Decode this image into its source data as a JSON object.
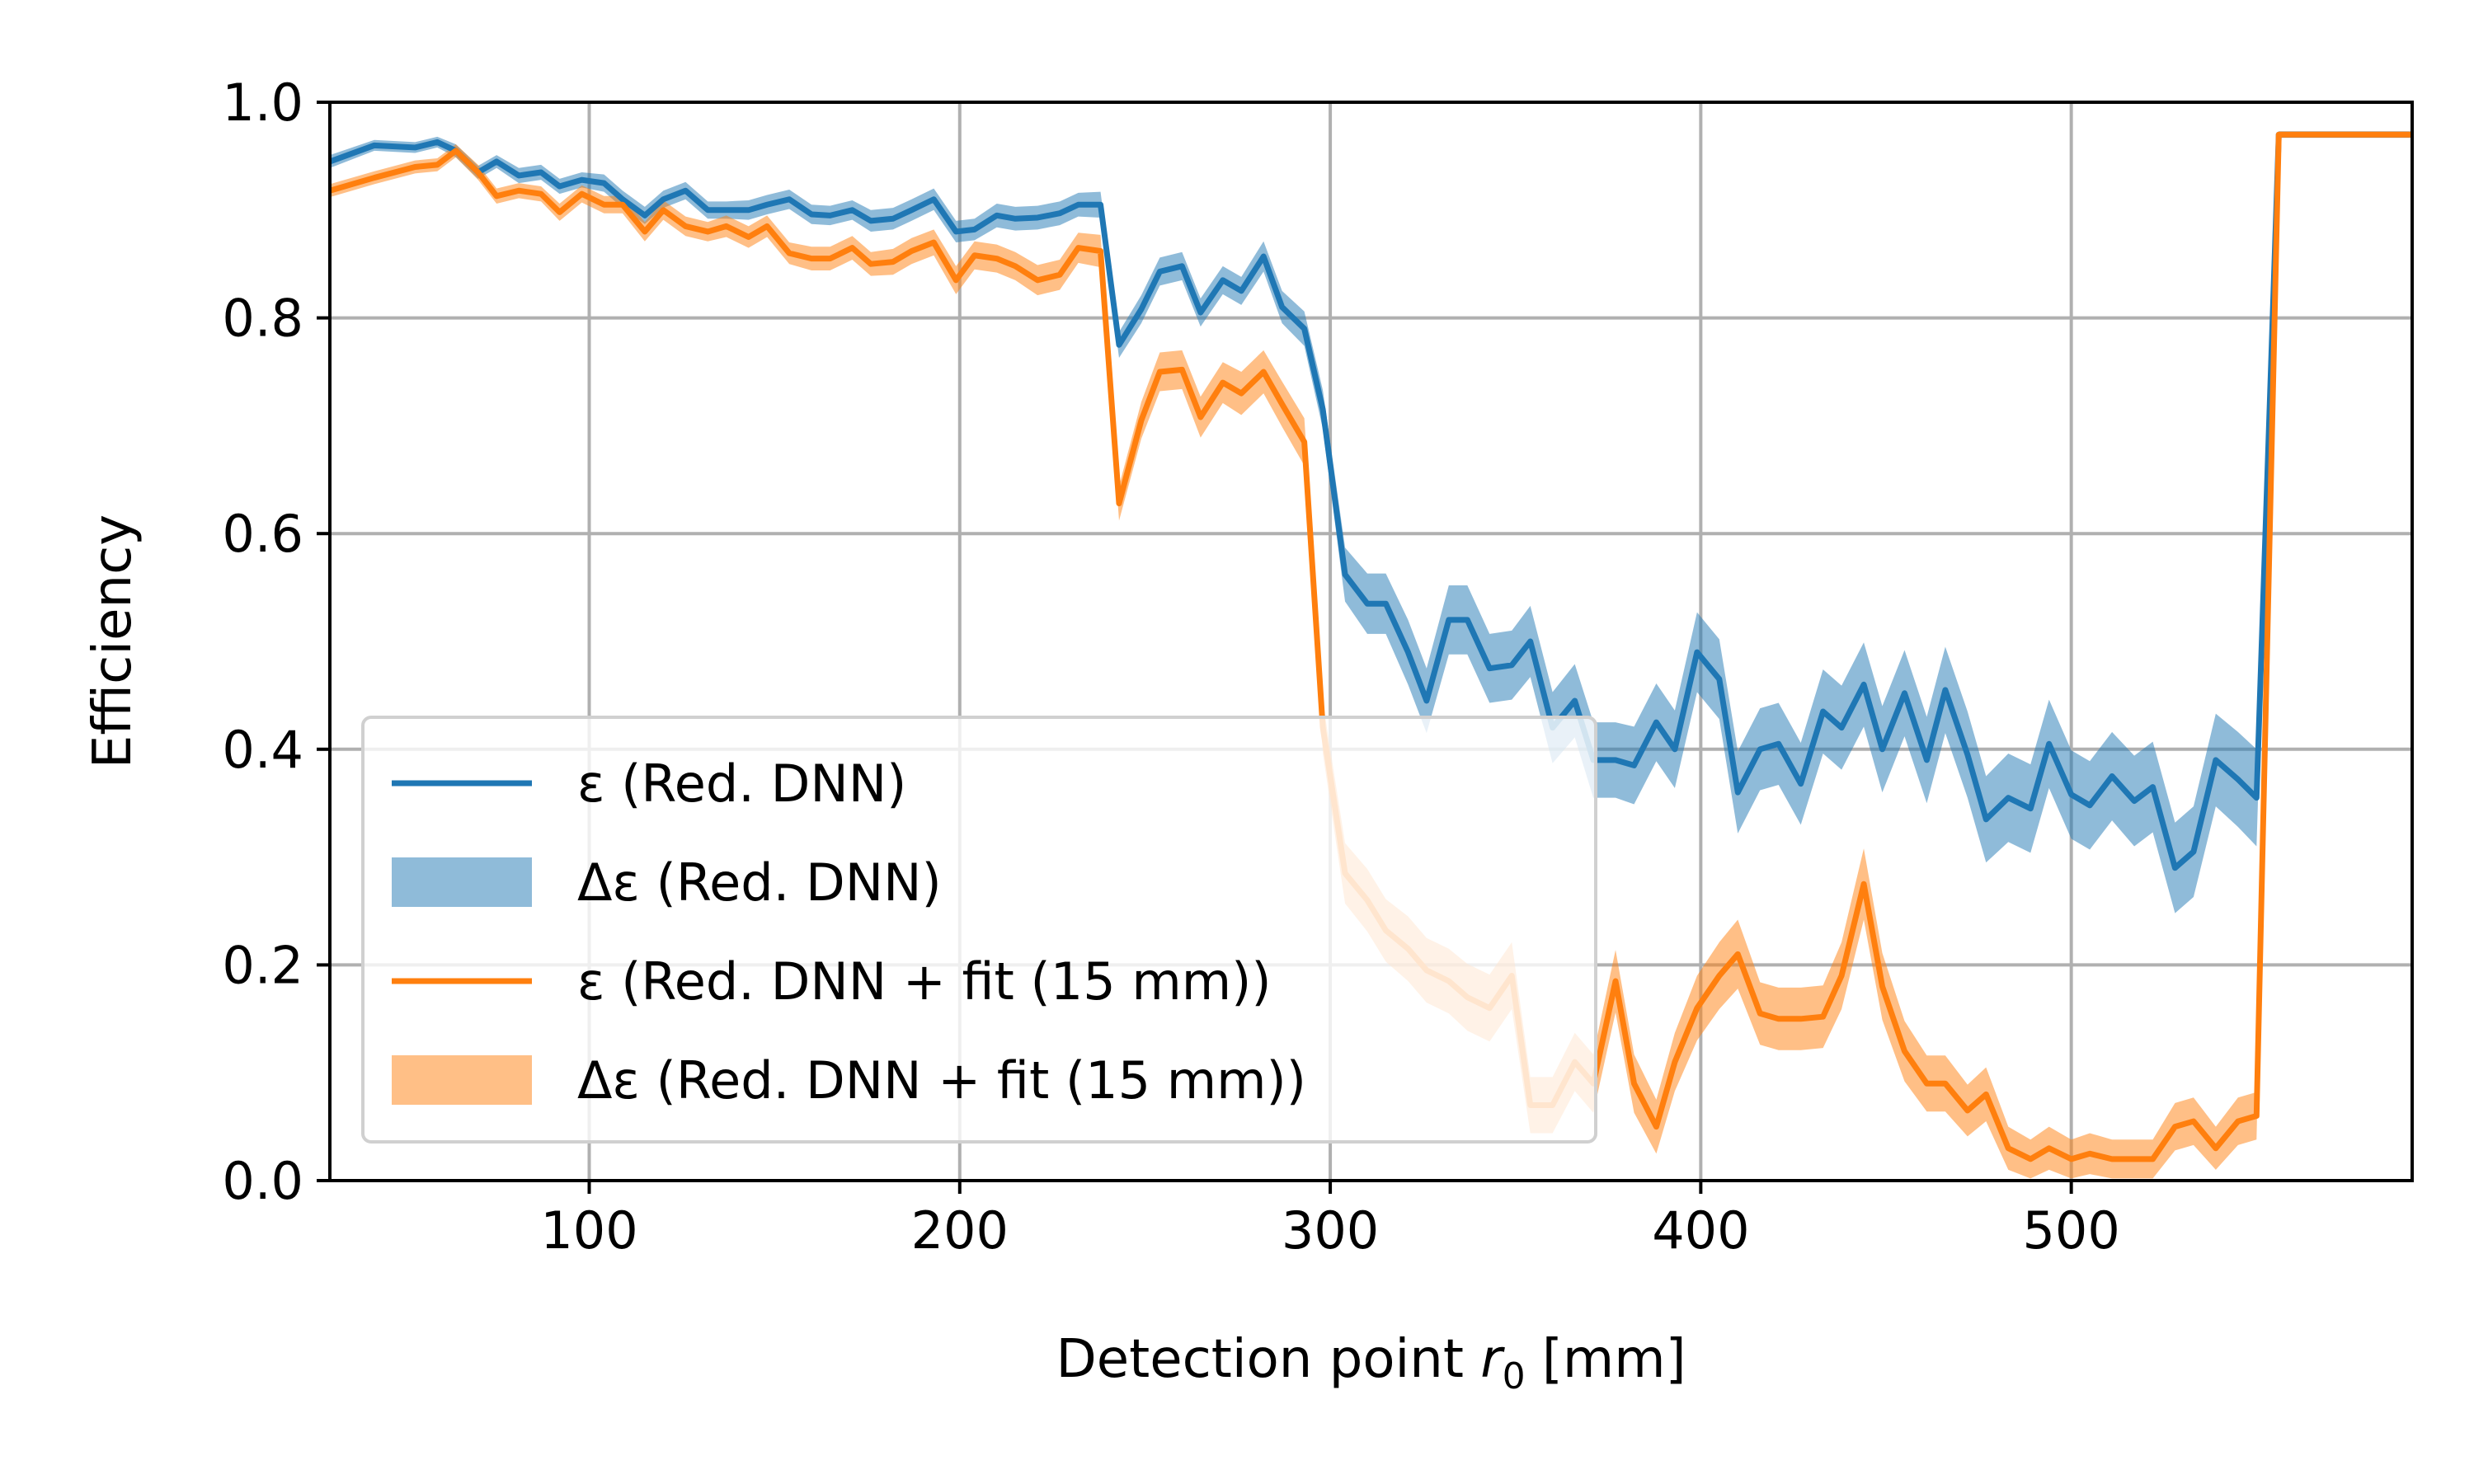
{
  "chart_data": {
    "type": "line",
    "title": "",
    "xlabel_prefix": "Detection point ",
    "xlabel_var": "r",
    "xlabel_sub": "0",
    "xlabel_suffix": " [mm]",
    "ylabel": "Efficiency",
    "xlim": [
      30,
      592
    ],
    "ylim": [
      0,
      1
    ],
    "xticks": [
      100,
      200,
      300,
      400,
      500
    ],
    "xtick_labels": [
      "100",
      "200",
      "300",
      "400",
      "500"
    ],
    "yticks": [
      0,
      0.2,
      0.4,
      0.6,
      0.8,
      1.0
    ],
    "ytick_labels": [
      "0.0",
      "0.2",
      "0.4",
      "0.6",
      "0.8",
      "1.0"
    ],
    "grid": true,
    "legend_position": "lower-left",
    "x": [
      30,
      42,
      53,
      59,
      64,
      70,
      75,
      81,
      87,
      92,
      98,
      104,
      109,
      115,
      120,
      126,
      132,
      137,
      143,
      148,
      154,
      160,
      165,
      171,
      176,
      182,
      187,
      193,
      199,
      204,
      210,
      215,
      221,
      227,
      232,
      238,
      243,
      249,
      254,
      260,
      265,
      271,
      276,
      282,
      287,
      293,
      298,
      304,
      310,
      315,
      321,
      326,
      332,
      337,
      343,
      349,
      354,
      360,
      366,
      371,
      377,
      382,
      388,
      393,
      399,
      405,
      410,
      416,
      421,
      427,
      433,
      438,
      444,
      449,
      455,
      461,
      466,
      472,
      477,
      483,
      489,
      494,
      500,
      505,
      511,
      517,
      522,
      528,
      533,
      539,
      545,
      550,
      556,
      561,
      567,
      573,
      578,
      584,
      589,
      592
    ],
    "series": [
      {
        "name": "ε (Red. DNN)",
        "kind": "line",
        "color": "#1f77b4",
        "values": [
          0.945,
          0.96,
          0.958,
          0.963,
          0.955,
          0.935,
          0.945,
          0.932,
          0.935,
          0.922,
          0.928,
          0.925,
          0.91,
          0.895,
          0.91,
          0.918,
          0.9,
          0.9,
          0.9,
          0.905,
          0.91,
          0.896,
          0.895,
          0.9,
          0.89,
          0.892,
          0.9,
          0.91,
          0.88,
          0.882,
          0.895,
          0.892,
          0.893,
          0.897,
          0.905,
          0.905,
          0.775,
          0.808,
          0.843,
          0.848,
          0.805,
          0.835,
          0.825,
          0.857,
          0.81,
          0.79,
          0.715,
          0.562,
          0.535,
          0.535,
          0.49,
          0.445,
          0.52,
          0.52,
          0.475,
          0.478,
          0.5,
          0.42,
          0.445,
          0.39,
          0.39,
          0.385,
          0.425,
          0.4,
          0.49,
          0.465,
          0.36,
          0.4,
          0.405,
          0.368,
          0.435,
          0.42,
          0.46,
          0.4,
          0.452,
          0.39,
          0.455,
          0.395,
          0.335,
          0.355,
          0.345,
          0.405,
          0.358,
          0.348,
          0.375,
          0.352,
          0.365,
          0.29,
          0.305,
          0.39,
          0.372,
          0.355,
          0.97,
          0.97,
          0.97,
          0.97,
          0.97,
          0.97,
          0.97,
          0.97
        ]
      },
      {
        "name": "Δε (Red. DNN)",
        "kind": "band",
        "color": "#1f77b4",
        "halfwidth": [
          0.006,
          0.005,
          0.005,
          0.005,
          0.006,
          0.006,
          0.006,
          0.007,
          0.007,
          0.007,
          0.007,
          0.008,
          0.008,
          0.008,
          0.008,
          0.008,
          0.008,
          0.008,
          0.009,
          0.009,
          0.009,
          0.009,
          0.009,
          0.009,
          0.01,
          0.01,
          0.01,
          0.01,
          0.01,
          0.01,
          0.011,
          0.011,
          0.011,
          0.011,
          0.011,
          0.012,
          0.012,
          0.013,
          0.013,
          0.013,
          0.013,
          0.013,
          0.013,
          0.014,
          0.015,
          0.016,
          0.018,
          0.025,
          0.028,
          0.028,
          0.03,
          0.03,
          0.032,
          0.032,
          0.032,
          0.032,
          0.033,
          0.033,
          0.034,
          0.035,
          0.035,
          0.036,
          0.036,
          0.036,
          0.037,
          0.037,
          0.038,
          0.038,
          0.038,
          0.038,
          0.039,
          0.039,
          0.039,
          0.04,
          0.04,
          0.04,
          0.04,
          0.04,
          0.04,
          0.041,
          0.041,
          0.041,
          0.041,
          0.041,
          0.041,
          0.042,
          0.042,
          0.042,
          0.042,
          0.043,
          0.044,
          0.045,
          0.003,
          0.003,
          0.003,
          0.003,
          0.003,
          0.003,
          0.003,
          0.003
        ]
      },
      {
        "name": "ε (Red. DNN + fit (15 mm))",
        "kind": "line",
        "color": "#ff7f0e",
        "values": [
          0.918,
          0.93,
          0.94,
          0.942,
          0.955,
          0.935,
          0.913,
          0.918,
          0.915,
          0.898,
          0.915,
          0.905,
          0.905,
          0.88,
          0.9,
          0.885,
          0.88,
          0.885,
          0.875,
          0.885,
          0.86,
          0.855,
          0.855,
          0.865,
          0.85,
          0.852,
          0.862,
          0.87,
          0.835,
          0.858,
          0.855,
          0.848,
          0.835,
          0.84,
          0.865,
          0.862,
          0.628,
          0.705,
          0.75,
          0.752,
          0.708,
          0.74,
          0.73,
          0.75,
          0.72,
          0.685,
          0.42,
          0.285,
          0.26,
          0.232,
          0.215,
          0.195,
          0.185,
          0.17,
          0.16,
          0.19,
          0.07,
          0.07,
          0.11,
          0.09,
          0.185,
          0.09,
          0.05,
          0.11,
          0.16,
          0.19,
          0.21,
          0.155,
          0.15,
          0.15,
          0.152,
          0.19,
          0.275,
          0.18,
          0.12,
          0.09,
          0.09,
          0.065,
          0.08,
          0.03,
          0.02,
          0.03,
          0.02,
          0.025,
          0.02,
          0.02,
          0.02,
          0.05,
          0.055,
          0.03,
          0.055,
          0.06,
          0.97,
          0.97,
          0.97,
          0.97,
          0.97,
          0.97,
          0.97,
          0.97
        ]
      },
      {
        "name": "Δε (Red. DNN + fit (15 mm))",
        "kind": "band",
        "color": "#ff7f0e",
        "halfwidth": [
          0.006,
          0.006,
          0.006,
          0.006,
          0.006,
          0.007,
          0.007,
          0.007,
          0.007,
          0.008,
          0.008,
          0.008,
          0.008,
          0.009,
          0.009,
          0.009,
          0.009,
          0.01,
          0.01,
          0.01,
          0.01,
          0.011,
          0.011,
          0.011,
          0.011,
          0.012,
          0.012,
          0.012,
          0.013,
          0.013,
          0.013,
          0.013,
          0.014,
          0.014,
          0.014,
          0.015,
          0.016,
          0.017,
          0.018,
          0.018,
          0.019,
          0.019,
          0.02,
          0.02,
          0.021,
          0.022,
          0.024,
          0.028,
          0.029,
          0.029,
          0.03,
          0.03,
          0.03,
          0.031,
          0.031,
          0.031,
          0.026,
          0.026,
          0.027,
          0.027,
          0.029,
          0.027,
          0.025,
          0.027,
          0.03,
          0.031,
          0.032,
          0.029,
          0.029,
          0.029,
          0.029,
          0.031,
          0.033,
          0.031,
          0.028,
          0.026,
          0.026,
          0.024,
          0.025,
          0.02,
          0.018,
          0.02,
          0.018,
          0.019,
          0.018,
          0.018,
          0.018,
          0.022,
          0.022,
          0.02,
          0.022,
          0.022,
          0.003,
          0.003,
          0.003,
          0.003,
          0.003,
          0.003,
          0.003,
          0.003
        ]
      }
    ]
  }
}
